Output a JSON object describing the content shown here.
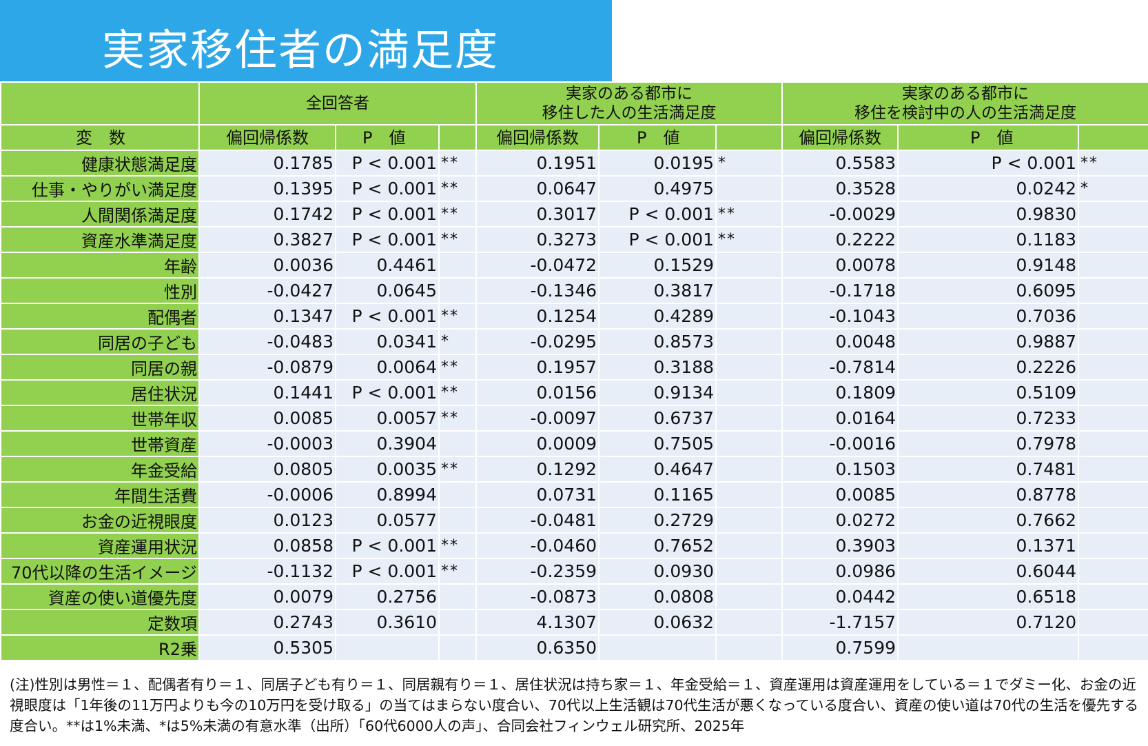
{
  "title": "実家移住者の満足度",
  "groups": [
    "全回答者",
    "実家のある都市に\n移住した人の生活満足度",
    "実家のある都市に\n移住を検討中の人の生活満足度"
  ],
  "col_headers": {
    "variable": "変　数",
    "coef": "偏回帰係数",
    "pval": "P　値"
  },
  "rows": [
    {
      "label": "健康状態満足度",
      "a": [
        "0.1785",
        "P < 0.001",
        "**"
      ],
      "b": [
        "0.1951",
        "0.0195",
        "*"
      ],
      "c": [
        "0.5583",
        "P < 0.001",
        "**"
      ]
    },
    {
      "label": "仕事・やりがい満足度",
      "a": [
        "0.1395",
        "P < 0.001",
        "**"
      ],
      "b": [
        "0.0647",
        "0.4975",
        ""
      ],
      "c": [
        "0.3528",
        "0.0242",
        "*"
      ]
    },
    {
      "label": "人間関係満足度",
      "a": [
        "0.1742",
        "P < 0.001",
        "**"
      ],
      "b": [
        "0.3017",
        "P < 0.001",
        "**"
      ],
      "c": [
        "-0.0029",
        "0.9830",
        ""
      ]
    },
    {
      "label": "資産水準満足度",
      "a": [
        "0.3827",
        "P < 0.001",
        "**"
      ],
      "b": [
        "0.3273",
        "P < 0.001",
        "**"
      ],
      "c": [
        "0.2222",
        "0.1183",
        ""
      ]
    },
    {
      "label": "年齢",
      "a": [
        "0.0036",
        "0.4461",
        ""
      ],
      "b": [
        "-0.0472",
        "0.1529",
        ""
      ],
      "c": [
        "0.0078",
        "0.9148",
        ""
      ]
    },
    {
      "label": "性別",
      "a": [
        "-0.0427",
        "0.0645",
        ""
      ],
      "b": [
        "-0.1346",
        "0.3817",
        ""
      ],
      "c": [
        "-0.1718",
        "0.6095",
        ""
      ]
    },
    {
      "label": "配偶者",
      "a": [
        "0.1347",
        "P < 0.001",
        "**"
      ],
      "b": [
        "0.1254",
        "0.4289",
        ""
      ],
      "c": [
        "-0.1043",
        "0.7036",
        ""
      ]
    },
    {
      "label": "同居の子ども",
      "a": [
        "-0.0483",
        "0.0341",
        "*"
      ],
      "b": [
        "-0.0295",
        "0.8573",
        ""
      ],
      "c": [
        "0.0048",
        "0.9887",
        ""
      ]
    },
    {
      "label": "同居の親",
      "a": [
        "-0.0879",
        "0.0064",
        "**"
      ],
      "b": [
        "0.1957",
        "0.3188",
        ""
      ],
      "c": [
        "-0.7814",
        "0.2226",
        ""
      ]
    },
    {
      "label": "居住状況",
      "a": [
        "0.1441",
        "P < 0.001",
        "**"
      ],
      "b": [
        "0.0156",
        "0.9134",
        ""
      ],
      "c": [
        "0.1809",
        "0.5109",
        ""
      ]
    },
    {
      "label": "世帯年収",
      "a": [
        "0.0085",
        "0.0057",
        "**"
      ],
      "b": [
        "-0.0097",
        "0.6737",
        ""
      ],
      "c": [
        "0.0164",
        "0.7233",
        ""
      ]
    },
    {
      "label": "世帯資産",
      "a": [
        "-0.0003",
        "0.3904",
        ""
      ],
      "b": [
        "0.0009",
        "0.7505",
        ""
      ],
      "c": [
        "-0.0016",
        "0.7978",
        ""
      ]
    },
    {
      "label": "年金受給",
      "a": [
        "0.0805",
        "0.0035",
        "**"
      ],
      "b": [
        "0.1292",
        "0.4647",
        ""
      ],
      "c": [
        "0.1503",
        "0.7481",
        ""
      ]
    },
    {
      "label": "年間生活費",
      "a": [
        "-0.0006",
        "0.8994",
        ""
      ],
      "b": [
        "0.0731",
        "0.1165",
        ""
      ],
      "c": [
        "0.0085",
        "0.8778",
        ""
      ]
    },
    {
      "label": "お金の近視眼度",
      "a": [
        "0.0123",
        "0.0577",
        ""
      ],
      "b": [
        "-0.0481",
        "0.2729",
        ""
      ],
      "c": [
        "0.0272",
        "0.7662",
        ""
      ]
    },
    {
      "label": "資産運用状況",
      "a": [
        "0.0858",
        "P < 0.001",
        "**"
      ],
      "b": [
        "-0.0460",
        "0.7652",
        ""
      ],
      "c": [
        "0.3903",
        "0.1371",
        ""
      ]
    },
    {
      "label": "70代以降の生活イメージ",
      "a": [
        "-0.1132",
        "P < 0.001",
        "**"
      ],
      "b": [
        "-0.2359",
        "0.0930",
        ""
      ],
      "c": [
        "0.0986",
        "0.6044",
        ""
      ]
    },
    {
      "label": "資産の使い道優先度",
      "a": [
        "0.0079",
        "0.2756",
        ""
      ],
      "b": [
        "-0.0873",
        "0.0808",
        ""
      ],
      "c": [
        "0.0442",
        "0.6518",
        ""
      ]
    },
    {
      "label": "定数項",
      "a": [
        "0.2743",
        "0.3610",
        ""
      ],
      "b": [
        "4.1307",
        "0.0632",
        ""
      ],
      "c": [
        "-1.7157",
        "0.7120",
        ""
      ]
    },
    {
      "label": "R2乗",
      "a": [
        "0.5305",
        "",
        ""
      ],
      "b": [
        "0.6350",
        "",
        ""
      ],
      "c": [
        "0.7599",
        "",
        ""
      ]
    }
  ],
  "note": "(注)性別は男性＝１、配偶者有り＝１、同居子ども有り＝１、同居親有り＝１、居住状況は持ち家＝１、年金受給＝１、資産運用は資産運用をしている＝１でダミー化、お金の近視眼度は「1年後の11万円よりも今の10万円を受け取る」の当てはまらない度合い、70代以上生活観は70代生活が悪くなっている度合い、資産の使い道は70代の生活を優先する度合い。**は1%未満、*は5%未満の有意水準（出所）「60代6000人の声」、合同会社フィンウェル研究所、2025年"
}
